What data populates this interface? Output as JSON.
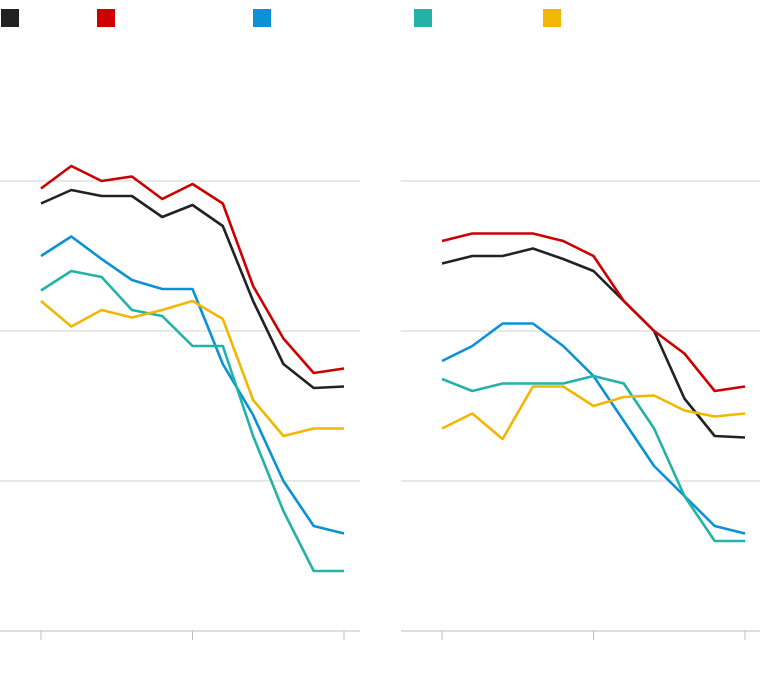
{
  "legend": {
    "placement": "top",
    "entries": [
      {
        "color": "#222222",
        "label": ""
      },
      {
        "color": "#cc0000",
        "label": ""
      },
      {
        "color": "#0a91d6",
        "label": ""
      },
      {
        "color": "#22b2a6",
        "label": ""
      },
      {
        "color": "#f2b705",
        "label": ""
      }
    ]
  },
  "chart_data": [
    {
      "type": "line",
      "title": "",
      "xlabel": "",
      "ylabel": "",
      "x": [
        0,
        1,
        2,
        3,
        4,
        5,
        6,
        7,
        8,
        9,
        10
      ],
      "xlim": [
        0,
        10
      ],
      "xticks": [
        0,
        5,
        10
      ],
      "ylim": [
        0,
        3
      ],
      "yticks": [
        0,
        1,
        2,
        3
      ],
      "grid": true,
      "series": [
        {
          "color": "#222222",
          "values": [
            2.85,
            2.94,
            2.9,
            2.9,
            2.76,
            2.84,
            2.7,
            2.2,
            1.78,
            1.62,
            1.63
          ]
        },
        {
          "color": "#cc0000",
          "values": [
            2.95,
            3.1,
            3.0,
            3.03,
            2.88,
            2.98,
            2.85,
            2.3,
            1.95,
            1.72,
            1.75
          ]
        },
        {
          "color": "#0a91d6",
          "values": [
            2.5,
            2.63,
            2.48,
            2.34,
            2.28,
            2.28,
            1.78,
            1.44,
            1.0,
            0.7,
            0.65
          ]
        },
        {
          "color": "#22b2a6",
          "values": [
            2.27,
            2.4,
            2.36,
            2.14,
            2.1,
            1.9,
            1.9,
            1.3,
            0.8,
            0.4,
            0.4
          ]
        },
        {
          "color": "#f2b705",
          "values": [
            2.2,
            2.03,
            2.14,
            2.09,
            2.14,
            2.2,
            2.08,
            1.54,
            1.3,
            1.35,
            1.35
          ]
        }
      ]
    },
    {
      "type": "line",
      "title": "",
      "xlabel": "",
      "ylabel": "",
      "x": [
        0,
        1,
        2,
        3,
        4,
        5,
        6,
        7,
        8,
        9,
        10
      ],
      "xlim": [
        0,
        10
      ],
      "xticks": [
        0,
        5,
        10
      ],
      "ylim": [
        0,
        3
      ],
      "yticks": [
        0,
        1,
        2,
        3
      ],
      "grid": true,
      "series": [
        {
          "color": "#222222",
          "values": [
            2.45,
            2.5,
            2.5,
            2.55,
            2.48,
            2.4,
            2.2,
            2.0,
            1.55,
            1.3,
            1.29
          ]
        },
        {
          "color": "#cc0000",
          "values": [
            2.6,
            2.65,
            2.65,
            2.65,
            2.6,
            2.5,
            2.2,
            2.0,
            1.85,
            1.6,
            1.63
          ]
        },
        {
          "color": "#0a91d6",
          "values": [
            1.8,
            1.9,
            2.05,
            2.05,
            1.9,
            1.7,
            1.4,
            1.1,
            0.9,
            0.7,
            0.65
          ]
        },
        {
          "color": "#22b2a6",
          "values": [
            1.68,
            1.6,
            1.65,
            1.65,
            1.65,
            1.7,
            1.65,
            1.35,
            0.9,
            0.6,
            0.6
          ]
        },
        {
          "color": "#f2b705",
          "values": [
            1.35,
            1.45,
            1.28,
            1.63,
            1.63,
            1.5,
            1.56,
            1.57,
            1.47,
            1.43,
            1.45
          ]
        }
      ]
    }
  ]
}
